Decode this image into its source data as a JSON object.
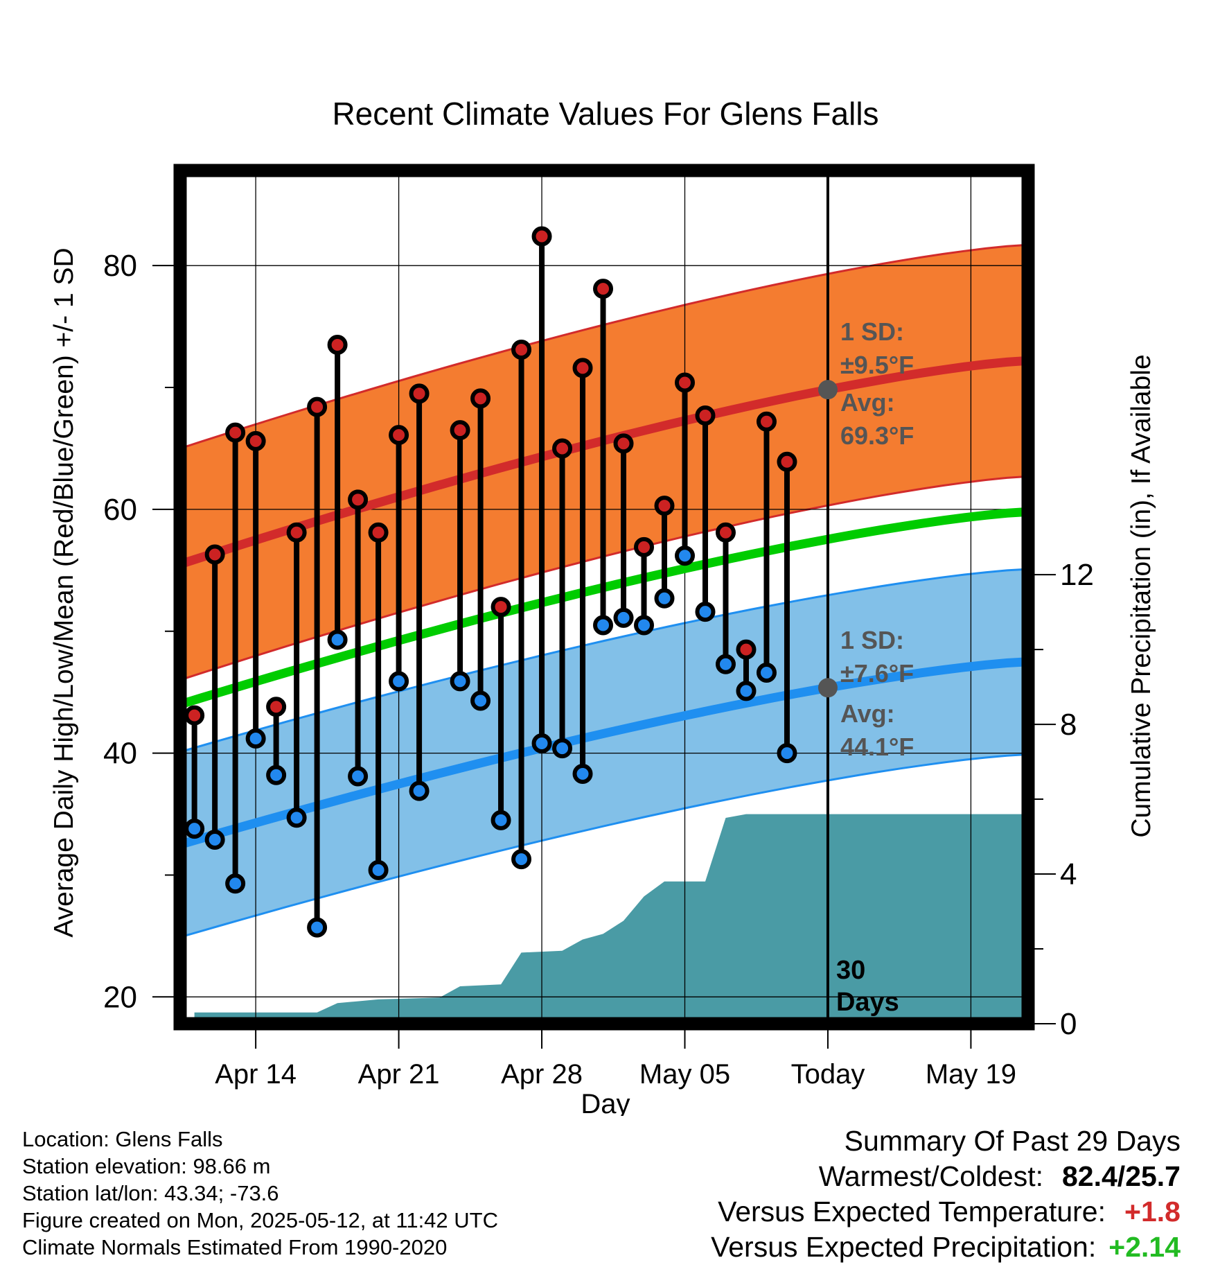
{
  "chart_data": {
    "type": "line",
    "title": "Recent Climate Values For Glens Falls",
    "xlabel": "Day",
    "ylabel_left": "Average Daily High/Low/Mean (Red/Blue/Green) +/- 1 SD",
    "ylabel_right": "Cumulative Precipitation (in), If Available",
    "x_ticks": [
      {
        "day": 14,
        "label": "Apr 14"
      },
      {
        "day": 21,
        "label": "Apr 21"
      },
      {
        "day": 28,
        "label": "Apr 28"
      },
      {
        "day": 35,
        "label": "May 05"
      },
      {
        "day": 42,
        "label": "Today"
      },
      {
        "day": 49,
        "label": "May 19"
      }
    ],
    "xlim": [
      10.3,
      51.8
    ],
    "ylim_left": [
      17.8,
      87.8
    ],
    "yticks_left": [
      "20",
      "40",
      "60",
      "80"
    ],
    "ylim_right": [
      0,
      22.8
    ],
    "yticks_right": [
      "0",
      "4",
      "8",
      "12"
    ],
    "grid": true,
    "today": 42,
    "today_label": [
      "30",
      "Days"
    ],
    "normal_high": {
      "start": 55.5,
      "end": 72.2,
      "sd": 9.5,
      "color": "#d22b2b",
      "band_color": "#f47c30"
    },
    "normal_low": {
      "start": 32.5,
      "end": 47.5,
      "sd": 7.6,
      "color": "#1f8ff0",
      "band_color": "#82c0e8"
    },
    "normal_mean": {
      "start": 44.0,
      "end": 59.8,
      "color": "#00cc00"
    },
    "annotations": {
      "high_sd": [
        "1 SD:",
        "±9.5°F"
      ],
      "high_avg": [
        "Avg:",
        "69.3°F"
      ],
      "low_sd": [
        "1 SD:",
        "±7.6°F"
      ],
      "low_avg": [
        "Avg:",
        "44.1°F"
      ]
    },
    "daily": [
      {
        "day": 11,
        "high": 43.1,
        "low": 33.8
      },
      {
        "day": 12,
        "high": 56.3,
        "low": 32.9
      },
      {
        "day": 13,
        "high": 66.3,
        "low": 29.3
      },
      {
        "day": 14,
        "high": 65.6,
        "low": 41.2
      },
      {
        "day": 15,
        "high": 43.8,
        "low": 38.2
      },
      {
        "day": 16,
        "high": 58.1,
        "low": 34.7
      },
      {
        "day": 17,
        "high": 68.4,
        "low": 25.7
      },
      {
        "day": 18,
        "high": 73.5,
        "low": 49.3
      },
      {
        "day": 19,
        "high": 60.8,
        "low": 38.1
      },
      {
        "day": 20,
        "high": 58.1,
        "low": 30.4
      },
      {
        "day": 21,
        "high": 66.1,
        "low": 45.9
      },
      {
        "day": 22,
        "high": 69.5,
        "low": 36.9
      },
      {
        "day": 24,
        "high": 66.5,
        "low": 45.9
      },
      {
        "day": 25,
        "high": 69.1,
        "low": 44.3
      },
      {
        "day": 26,
        "high": 52.0,
        "low": 34.5
      },
      {
        "day": 27,
        "high": 73.1,
        "low": 31.3
      },
      {
        "day": 28,
        "high": 82.4,
        "low": 40.8
      },
      {
        "day": 29,
        "high": 65.0,
        "low": 40.4
      },
      {
        "day": 30,
        "high": 71.6,
        "low": 38.3
      },
      {
        "day": 31,
        "high": 78.1,
        "low": 50.5
      },
      {
        "day": 32,
        "high": 65.4,
        "low": 51.1
      },
      {
        "day": 33,
        "high": 56.9,
        "low": 50.5
      },
      {
        "day": 34,
        "high": 60.3,
        "low": 52.7
      },
      {
        "day": 35,
        "high": 70.4,
        "low": 56.2
      },
      {
        "day": 36,
        "high": 67.7,
        "low": 51.6
      },
      {
        "day": 37,
        "high": 58.1,
        "low": 47.3
      },
      {
        "day": 38,
        "high": 48.5,
        "low": 45.1
      },
      {
        "day": 39,
        "high": 67.2,
        "low": 46.6
      },
      {
        "day": 40,
        "high": 63.9,
        "low": 40.0
      }
    ],
    "precip_cumulative": [
      {
        "day": 11,
        "value": 0.3
      },
      {
        "day": 17,
        "value": 0.3
      },
      {
        "day": 18,
        "value": 0.55
      },
      {
        "day": 19,
        "value": 0.6
      },
      {
        "day": 20,
        "value": 0.65
      },
      {
        "day": 23,
        "value": 0.7
      },
      {
        "day": 24,
        "value": 1.0
      },
      {
        "day": 26,
        "value": 1.05
      },
      {
        "day": 27,
        "value": 1.9
      },
      {
        "day": 29,
        "value": 1.95
      },
      {
        "day": 30,
        "value": 2.25
      },
      {
        "day": 31,
        "value": 2.4
      },
      {
        "day": 32,
        "value": 2.75
      },
      {
        "day": 33,
        "value": 3.4
      },
      {
        "day": 34,
        "value": 3.8
      },
      {
        "day": 36,
        "value": 3.8
      },
      {
        "day": 37,
        "value": 5.5
      },
      {
        "day": 38,
        "value": 5.6
      },
      {
        "day": 51.8,
        "value": 5.6
      }
    ],
    "precip_color": "#4a9ba5"
  },
  "info": {
    "location": "Location: Glens Falls",
    "elevation": "Station elevation: 98.66 m",
    "latlon": "Station lat/lon: 43.34; -73.6",
    "created": "Figure created on Mon, 2025-05-12, at 11:42 UTC",
    "normals": "Climate Normals Estimated From 1990-2020"
  },
  "summary": {
    "title": "Summary Of Past 29 Days",
    "warm_cold_label": "Warmest/Coldest:",
    "warm_cold_value": "82.4/25.7",
    "temp_label": "Versus Expected Temperature:",
    "temp_value": "+1.8",
    "temp_color": "#d22b2b",
    "precip_label": "Versus Expected Precipitation:",
    "precip_value": "+2.14",
    "precip_color": "#22bb22"
  }
}
